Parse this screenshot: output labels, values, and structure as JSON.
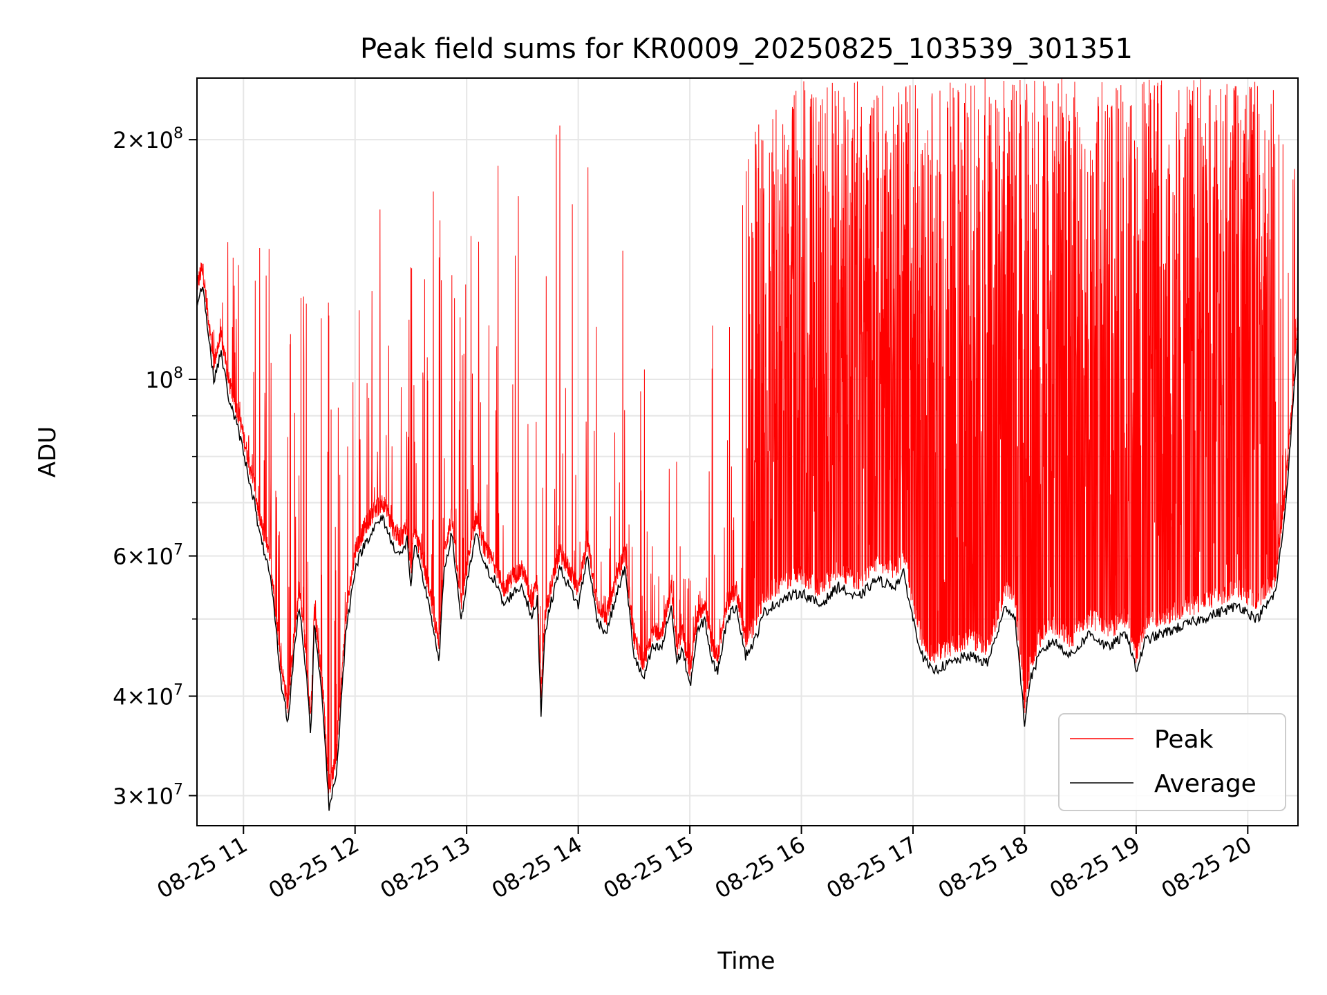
{
  "chart_data": {
    "type": "line",
    "title": "Peak field sums for KR0009_20250825_103539_301351",
    "xlabel": "Time",
    "ylabel": "ADU",
    "yscale": "log",
    "ylim": [
      27500000,
      239000000
    ],
    "xlim": [
      "2025-08-25 10:35",
      "2025-08-25 20:27"
    ],
    "grid": true,
    "legend_position": "lower right",
    "x_ticks": [
      {
        "label": "08-25 11",
        "time": "2025-08-25 11:00"
      },
      {
        "label": "08-25 12",
        "time": "2025-08-25 12:00"
      },
      {
        "label": "08-25 13",
        "time": "2025-08-25 13:00"
      },
      {
        "label": "08-25 14",
        "time": "2025-08-25 14:00"
      },
      {
        "label": "08-25 15",
        "time": "2025-08-25 15:00"
      },
      {
        "label": "08-25 16",
        "time": "2025-08-25 16:00"
      },
      {
        "label": "08-25 17",
        "time": "2025-08-25 17:00"
      },
      {
        "label": "08-25 18",
        "time": "2025-08-25 18:00"
      },
      {
        "label": "08-25 19",
        "time": "2025-08-25 19:00"
      },
      {
        "label": "08-25 20",
        "time": "2025-08-25 20:00"
      }
    ],
    "y_ticks": [
      {
        "value": 30000000,
        "mantissa": "3",
        "exponent": "7"
      },
      {
        "value": 40000000,
        "mantissa": "4",
        "exponent": "7"
      },
      {
        "value": 60000000,
        "mantissa": "6",
        "exponent": "7"
      },
      {
        "value": 100000000,
        "mantissa": "",
        "exponent": "8"
      },
      {
        "value": 200000000,
        "mantissa": "2",
        "exponent": "8"
      }
    ],
    "y_minor_ticks": [
      50000000,
      70000000,
      80000000,
      90000000
    ],
    "series": [
      {
        "name": "Peak",
        "color": "#ff0000",
        "envelope_description_values": "upper envelope of spikes (ADU) at given time",
        "envelope_times": [
          "2025-08-25 10:35",
          "2025-08-25 11:00",
          "2025-08-25 11:30",
          "2025-08-25 12:00",
          "2025-08-25 12:30",
          "2025-08-25 13:00",
          "2025-08-25 13:30",
          "2025-08-25 14:00",
          "2025-08-25 14:30",
          "2025-08-25 15:00",
          "2025-08-25 15:30",
          "2025-08-25 16:00",
          "2025-08-25 16:30",
          "2025-08-25 17:00",
          "2025-08-25 17:30",
          "2025-08-25 18:00",
          "2025-08-25 18:30",
          "2025-08-25 19:00",
          "2025-08-25 19:30",
          "2025-08-25 20:00",
          "2025-08-25 20:27"
        ],
        "envelope_values": [
          130000000,
          160000000,
          150000000,
          150000000,
          190000000,
          160000000,
          230000000,
          210000000,
          140000000,
          60000000,
          200000000,
          239000000,
          239000000,
          239000000,
          239000000,
          239000000,
          239000000,
          239000000,
          239000000,
          239000000,
          239000000
        ]
      },
      {
        "name": "Average",
        "color": "#000000",
        "times": [
          "2025-08-25 10:35",
          "2025-08-25 10:38",
          "2025-08-25 10:40",
          "2025-08-25 10:44",
          "2025-08-25 10:48",
          "2025-08-25 10:52",
          "2025-08-25 10:58",
          "2025-08-25 11:03",
          "2025-08-25 11:06",
          "2025-08-25 11:08",
          "2025-08-25 11:10",
          "2025-08-25 11:12",
          "2025-08-25 11:15",
          "2025-08-25 11:17",
          "2025-08-25 11:20",
          "2025-08-25 11:24",
          "2025-08-25 11:27",
          "2025-08-25 11:30",
          "2025-08-25 11:32",
          "2025-08-25 11:34",
          "2025-08-25 11:36",
          "2025-08-25 11:37",
          "2025-08-25 11:38",
          "2025-08-25 11:40",
          "2025-08-25 11:43",
          "2025-08-25 11:46",
          "2025-08-25 11:50",
          "2025-08-25 11:55",
          "2025-08-25 12:00",
          "2025-08-25 12:05",
          "2025-08-25 12:10",
          "2025-08-25 12:15",
          "2025-08-25 12:20",
          "2025-08-25 12:25",
          "2025-08-25 12:28",
          "2025-08-25 12:30",
          "2025-08-25 12:32",
          "2025-08-25 12:35",
          "2025-08-25 12:40",
          "2025-08-25 12:45",
          "2025-08-25 12:48",
          "2025-08-25 12:52",
          "2025-08-25 12:57",
          "2025-08-25 13:00",
          "2025-08-25 13:05",
          "2025-08-25 13:10",
          "2025-08-25 13:15",
          "2025-08-25 13:20",
          "2025-08-25 13:25",
          "2025-08-25 13:30",
          "2025-08-25 13:35",
          "2025-08-25 13:38",
          "2025-08-25 13:40",
          "2025-08-25 13:42",
          "2025-08-25 13:45",
          "2025-08-25 13:50",
          "2025-08-25 13:55",
          "2025-08-25 14:00",
          "2025-08-25 14:05",
          "2025-08-25 14:10",
          "2025-08-25 14:15",
          "2025-08-25 14:20",
          "2025-08-25 14:25",
          "2025-08-25 14:30",
          "2025-08-25 14:35",
          "2025-08-25 14:40",
          "2025-08-25 14:45",
          "2025-08-25 14:50",
          "2025-08-25 14:53",
          "2025-08-25 14:56",
          "2025-08-25 15:00",
          "2025-08-25 15:04",
          "2025-08-25 15:08",
          "2025-08-25 15:12",
          "2025-08-25 15:15",
          "2025-08-25 15:20",
          "2025-08-25 15:25",
          "2025-08-25 15:30",
          "2025-08-25 15:35",
          "2025-08-25 15:40",
          "2025-08-25 15:50",
          "2025-08-25 16:00",
          "2025-08-25 16:10",
          "2025-08-25 16:20",
          "2025-08-25 16:30",
          "2025-08-25 16:40",
          "2025-08-25 16:50",
          "2025-08-25 16:55",
          "2025-08-25 17:00",
          "2025-08-25 17:05",
          "2025-08-25 17:10",
          "2025-08-25 17:20",
          "2025-08-25 17:30",
          "2025-08-25 17:40",
          "2025-08-25 17:50",
          "2025-08-25 17:55",
          "2025-08-25 18:00",
          "2025-08-25 18:03",
          "2025-08-25 18:08",
          "2025-08-25 18:15",
          "2025-08-25 18:25",
          "2025-08-25 18:35",
          "2025-08-25 18:45",
          "2025-08-25 18:55",
          "2025-08-25 19:00",
          "2025-08-25 19:05",
          "2025-08-25 19:15",
          "2025-08-25 19:25",
          "2025-08-25 19:35",
          "2025-08-25 19:45",
          "2025-08-25 19:55",
          "2025-08-25 20:05",
          "2025-08-25 20:10",
          "2025-08-25 20:15",
          "2025-08-25 20:20",
          "2025-08-25 20:24",
          "2025-08-25 20:27"
        ],
        "values": [
          125000000,
          132000000,
          120000000,
          100000000,
          108000000,
          95000000,
          85000000,
          75000000,
          70000000,
          65000000,
          62000000,
          60000000,
          55000000,
          50000000,
          42000000,
          37000000,
          45000000,
          52000000,
          47000000,
          42000000,
          36000000,
          40000000,
          49000000,
          45000000,
          38000000,
          29000000,
          32000000,
          48000000,
          58000000,
          62000000,
          65000000,
          67000000,
          62000000,
          60000000,
          63000000,
          55000000,
          62000000,
          58000000,
          52000000,
          44000000,
          58000000,
          64000000,
          50000000,
          55000000,
          64000000,
          58000000,
          56000000,
          52000000,
          54000000,
          55000000,
          50000000,
          53000000,
          38000000,
          48000000,
          52000000,
          58000000,
          55000000,
          52000000,
          60000000,
          50000000,
          48000000,
          53000000,
          58000000,
          45000000,
          42000000,
          46000000,
          46000000,
          52000000,
          44000000,
          46000000,
          41000000,
          48000000,
          50000000,
          44000000,
          43000000,
          50000000,
          52000000,
          45000000,
          47000000,
          51000000,
          53000000,
          54000000,
          52000000,
          55000000,
          53000000,
          56000000,
          55000000,
          57000000,
          50000000,
          45000000,
          43000000,
          44000000,
          45000000,
          44000000,
          52000000,
          50000000,
          37000000,
          42000000,
          45000000,
          47000000,
          45000000,
          48000000,
          46000000,
          48000000,
          43000000,
          47000000,
          48000000,
          49000000,
          50000000,
          51000000,
          52000000,
          50000000,
          52000000,
          54000000,
          68000000,
          90000000,
          115000000
        ]
      }
    ]
  }
}
